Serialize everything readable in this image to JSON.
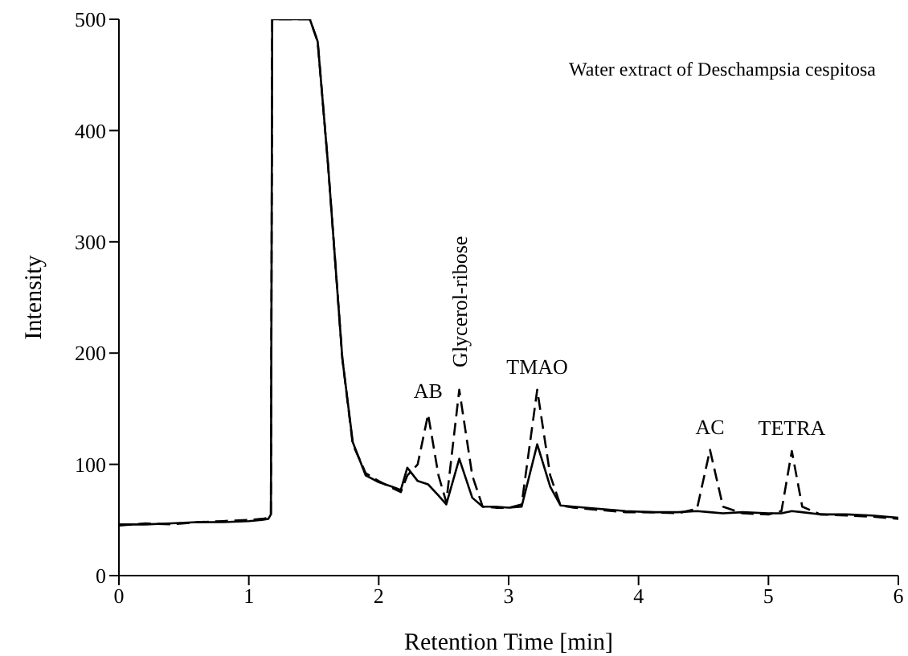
{
  "chart_data": {
    "type": "line",
    "title": "Water extract of Deschampsia cespitosa",
    "xlabel": "Retention Time [min]",
    "ylabel": "Intensity",
    "x": [
      0,
      0.2,
      0.4,
      0.6,
      0.8,
      1.0,
      1.1,
      1.15,
      1.17,
      1.18,
      1.47,
      1.53,
      1.61,
      1.72,
      1.8,
      1.9,
      2.0,
      2.1,
      2.17,
      2.22,
      2.3,
      2.38,
      2.46,
      2.52,
      2.62,
      2.72,
      2.8,
      2.9,
      3.0,
      3.1,
      3.22,
      3.32,
      3.4,
      3.5,
      3.7,
      3.9,
      4.1,
      4.3,
      4.45,
      4.55,
      4.65,
      4.8,
      5.0,
      5.1,
      5.18,
      5.26,
      5.4,
      5.6,
      5.8,
      6.0
    ],
    "series": [
      {
        "color": "#000000",
        "line_style": "solid",
        "values": [
          46,
          46,
          47,
          48,
          48,
          49,
          50,
          51,
          55,
          500,
          500,
          480,
          369,
          195,
          120,
          90,
          84,
          80,
          77,
          97,
          85,
          82,
          72,
          64,
          105,
          70,
          62,
          62,
          61,
          62,
          118,
          80,
          63,
          62,
          60,
          58,
          57,
          57,
          58,
          57,
          56,
          57,
          56,
          56,
          58,
          57,
          55,
          55,
          54,
          52
        ]
      },
      {
        "color": "#000000",
        "line_style": "dashed",
        "values": [
          45,
          47,
          46,
          48,
          49,
          50,
          51,
          52,
          55,
          500,
          500,
          480,
          369,
          195,
          118,
          92,
          85,
          79,
          75,
          90,
          100,
          145,
          90,
          66,
          167,
          90,
          62,
          61,
          61,
          64,
          167,
          90,
          63,
          61,
          59,
          57,
          57,
          56,
          60,
          113,
          62,
          56,
          55,
          58,
          112,
          62,
          55,
          54,
          53,
          51
        ]
      }
    ],
    "xlim": [
      0,
      6
    ],
    "xticks": [
      0,
      1,
      2,
      3,
      4,
      5,
      6
    ],
    "ylim": [
      0,
      500
    ],
    "yticks": [
      0,
      100,
      200,
      300,
      400,
      500
    ],
    "grid": false,
    "legend": false,
    "marker": "none",
    "annotations": [
      {
        "text": "AB",
        "x": 2.38,
        "y": 145
      },
      {
        "text": "Glycerol-ribose",
        "x": 2.62,
        "y": 167
      },
      {
        "text": "TMAO",
        "x": 3.22,
        "y": 167
      },
      {
        "text": "AC",
        "x": 4.55,
        "y": 113
      },
      {
        "text": "TETRA",
        "x": 5.18,
        "y": 112
      }
    ]
  }
}
